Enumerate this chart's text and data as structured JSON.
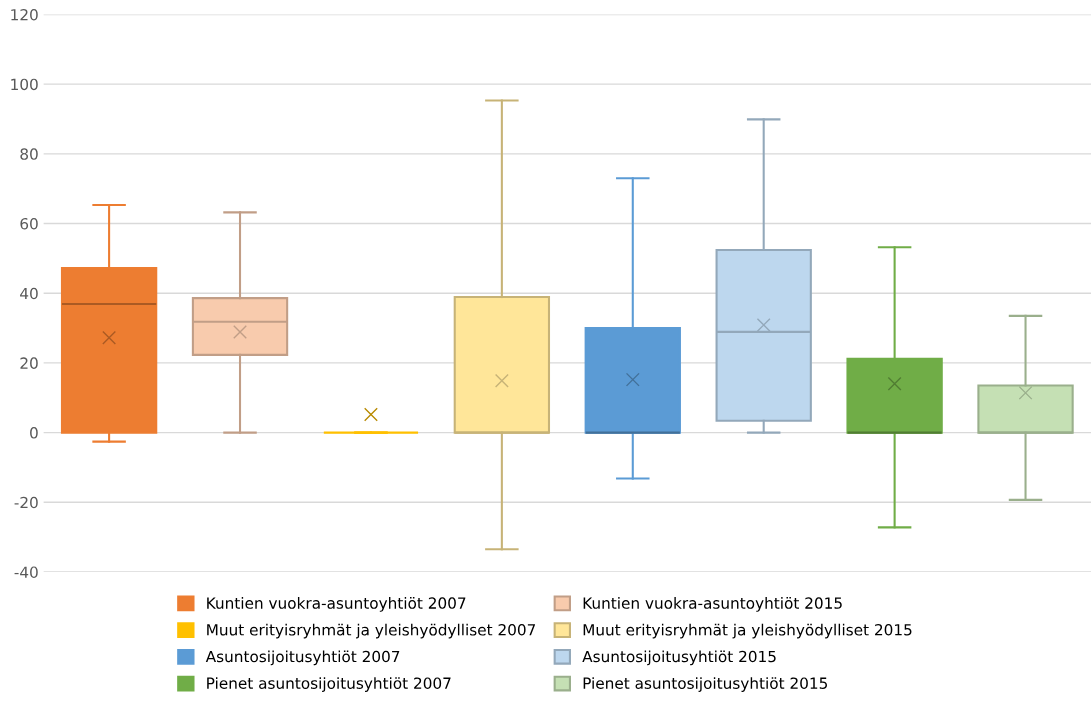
{
  "chart_data": {
    "type": "box",
    "categories": [
      null,
      null,
      null,
      null,
      null,
      null,
      null,
      null
    ],
    "ylim": [
      -40,
      120
    ],
    "yticks": [
      -40,
      -20,
      0,
      20,
      40,
      60,
      80,
      100,
      120
    ],
    "grid": "y",
    "legend": "bottom",
    "marker": "cross",
    "series": [
      {
        "name": "Kuntien vuokra-asuntoyhtiöt 2007",
        "color": "#ed7d31",
        "boxes": [
          {
            "low": -2.6,
            "q1": 0,
            "median": 36.9,
            "q3": 47.2,
            "high": 65.3,
            "mean": 27.2
          },
          null,
          null,
          null,
          null,
          null,
          null,
          null
        ]
      },
      {
        "name": "Kuntien vuokra-asuntoyhtiöt 2015",
        "color": "#f8cbad",
        "boxes": [
          null,
          {
            "low": 0,
            "q1": 22.3,
            "median": 31.8,
            "q3": 38.6,
            "high": 63.2,
            "mean": 28.9
          },
          null,
          null,
          null,
          null,
          null,
          null
        ]
      },
      {
        "name": "Muut erityisryhmät ja yleishyödylliset 2007",
        "color": "#ffc000",
        "boxes": [
          null,
          null,
          {
            "low": 0,
            "q1": 0,
            "median": 0,
            "q3": 0,
            "high": 0,
            "mean": 5.2
          },
          null,
          null,
          null,
          null,
          null
        ]
      },
      {
        "name": "Muut erityisryhmät ja yleishyödylliset 2015",
        "color": "#ffe699",
        "boxes": [
          null,
          null,
          null,
          {
            "low": -33.5,
            "q1": 0,
            "median": 0,
            "q3": 38.9,
            "high": 95.3,
            "mean": 14.9
          },
          null,
          null,
          null,
          null
        ]
      },
      {
        "name": "Asuntosijoitusyhtiöt 2007",
        "color": "#5b9bd5",
        "boxes": [
          null,
          null,
          null,
          null,
          {
            "low": -13.2,
            "q1": 0,
            "median": 0,
            "q3": 30,
            "high": 73,
            "mean": 15.2
          },
          null,
          null,
          null
        ]
      },
      {
        "name": "Asuntosijoitusyhtiöt 2015",
        "color": "#bdd7ee",
        "boxes": [
          null,
          null,
          null,
          null,
          null,
          {
            "low": 0,
            "q1": 3.4,
            "median": 28.9,
            "q3": 52.4,
            "high": 89.9,
            "mean": 30.9
          },
          null,
          null
        ]
      },
      {
        "name": "Pienet asuntosijoitusyhtiöt 2007",
        "color": "#70ad47",
        "boxes": [
          null,
          null,
          null,
          null,
          null,
          null,
          {
            "low": -27.2,
            "q1": 0,
            "median": 0,
            "q3": 21.2,
            "high": 53.2,
            "mean": 14.0
          },
          null
        ]
      },
      {
        "name": "Pienet asuntosijoitusyhtiöt 2015",
        "color": "#c5e0b4",
        "boxes": [
          null,
          null,
          null,
          null,
          null,
          null,
          null,
          {
            "low": -19.3,
            "q1": 0,
            "median": 0,
            "q3": 13.5,
            "high": 33.5,
            "mean": 11.4
          }
        ]
      }
    ]
  }
}
